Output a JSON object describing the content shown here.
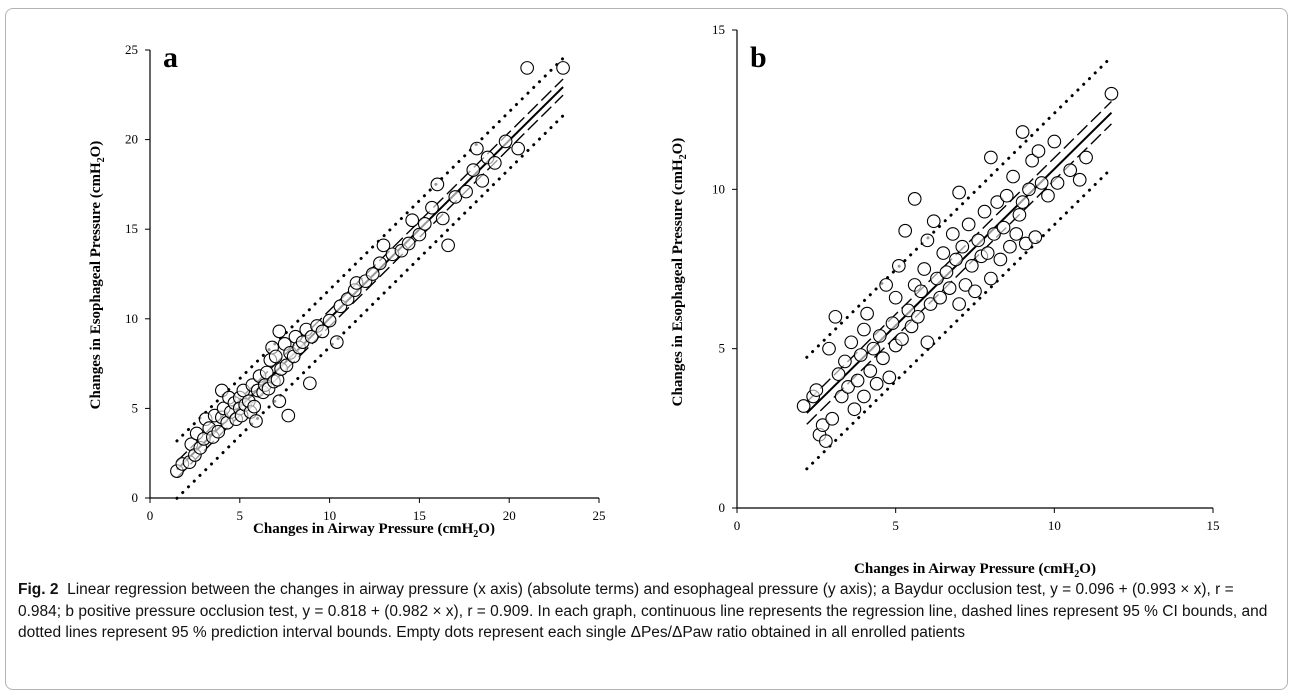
{
  "caption": {
    "label": "Fig. 2",
    "text": "Linear regression between the changes in airway pressure (x axis) (absolute terms) and esophageal pressure (y axis); a Baydur occlusion test, y = 0.096 + (0.993 × x), r = 0.984; b positive pressure occlusion test, y = 0.818 + (0.982 × x), r = 0.909. In each graph, continuous line represents the regression line, dashed lines represent 95 % CI bounds, and dotted lines represent 95 % prediction interval bounds. Empty dots represent each single ΔPes/ΔPaw ratio obtained in all enrolled patients"
  },
  "chart_data": [
    {
      "type": "scatter",
      "panel_label": "a",
      "xlabel": "Changes in Airway Pressure (cmH2O)",
      "ylabel": "Changes in Esophageal Pressure (cmH2O)",
      "xlim": [
        0,
        25
      ],
      "ylim": [
        0,
        25
      ],
      "xticks": [
        "0",
        "5",
        "10",
        "15",
        "20",
        "25"
      ],
      "yticks": [
        "0",
        "5",
        "10",
        "15",
        "20",
        "25"
      ],
      "regression": {
        "intercept": 0.096,
        "slope": 0.993,
        "x_range": [
          1.5,
          23
        ]
      },
      "ci_offset": 0.45,
      "prediction_offset": 1.6,
      "grid": false,
      "points": [
        [
          1.5,
          1.5
        ],
        [
          1.8,
          1.9
        ],
        [
          2.2,
          2.0
        ],
        [
          2.3,
          3.0
        ],
        [
          2.5,
          2.4
        ],
        [
          2.6,
          3.6
        ],
        [
          2.8,
          2.8
        ],
        [
          3.0,
          3.3
        ],
        [
          3.1,
          4.4
        ],
        [
          3.3,
          3.9
        ],
        [
          3.5,
          3.4
        ],
        [
          3.6,
          4.6
        ],
        [
          3.8,
          3.7
        ],
        [
          4.0,
          4.5
        ],
        [
          4.0,
          6.0
        ],
        [
          4.1,
          5.0
        ],
        [
          4.3,
          4.2
        ],
        [
          4.4,
          5.6
        ],
        [
          4.5,
          4.8
        ],
        [
          4.7,
          5.3
        ],
        [
          4.8,
          4.4
        ],
        [
          5.0,
          5.6
        ],
        [
          5.0,
          5.0
        ],
        [
          5.1,
          4.6
        ],
        [
          5.2,
          6.0
        ],
        [
          5.3,
          5.2
        ],
        [
          5.5,
          5.4
        ],
        [
          5.6,
          4.8
        ],
        [
          5.7,
          6.3
        ],
        [
          5.8,
          5.1
        ],
        [
          5.9,
          4.3
        ],
        [
          6.0,
          6.0
        ],
        [
          6.1,
          6.8
        ],
        [
          6.3,
          5.9
        ],
        [
          6.4,
          6.3
        ],
        [
          6.5,
          7.0
        ],
        [
          6.6,
          6.1
        ],
        [
          6.7,
          7.7
        ],
        [
          6.8,
          8.4
        ],
        [
          6.9,
          6.5
        ],
        [
          7.0,
          7.9
        ],
        [
          7.1,
          6.6
        ],
        [
          7.2,
          9.3
        ],
        [
          7.2,
          5.4
        ],
        [
          7.3,
          7.2
        ],
        [
          7.5,
          8.6
        ],
        [
          7.6,
          7.4
        ],
        [
          7.7,
          4.6
        ],
        [
          7.8,
          8.1
        ],
        [
          8.0,
          7.9
        ],
        [
          8.1,
          9.0
        ],
        [
          8.3,
          8.4
        ],
        [
          8.5,
          8.7
        ],
        [
          8.7,
          9.4
        ],
        [
          8.9,
          6.4
        ],
        [
          9.0,
          9.0
        ],
        [
          9.3,
          9.6
        ],
        [
          9.6,
          9.3
        ],
        [
          10.0,
          9.9
        ],
        [
          10.4,
          8.7
        ],
        [
          10.6,
          10.7
        ],
        [
          11.0,
          11.1
        ],
        [
          11.4,
          11.6
        ],
        [
          11.5,
          12.0
        ],
        [
          12.0,
          12.1
        ],
        [
          12.4,
          12.5
        ],
        [
          12.8,
          13.1
        ],
        [
          13.0,
          14.1
        ],
        [
          13.5,
          13.6
        ],
        [
          14.0,
          13.8
        ],
        [
          14.4,
          14.2
        ],
        [
          14.6,
          15.5
        ],
        [
          15.0,
          14.7
        ],
        [
          15.3,
          15.3
        ],
        [
          15.7,
          16.2
        ],
        [
          16.0,
          17.5
        ],
        [
          16.3,
          15.6
        ],
        [
          16.6,
          14.1
        ],
        [
          17.0,
          16.8
        ],
        [
          17.6,
          17.1
        ],
        [
          18.0,
          18.3
        ],
        [
          18.2,
          19.5
        ],
        [
          18.5,
          17.7
        ],
        [
          18.8,
          19.0
        ],
        [
          19.2,
          18.7
        ],
        [
          19.8,
          19.9
        ],
        [
          20.5,
          19.5
        ],
        [
          21.0,
          24.0
        ],
        [
          23.0,
          24.0
        ]
      ]
    },
    {
      "type": "scatter",
      "panel_label": "b",
      "xlabel": "Changes in Airway Pressure (cmH2O)",
      "ylabel": "Changes in Esophageal Pressure (cmH2O)",
      "xlim": [
        0,
        15
      ],
      "ylim": [
        0,
        15
      ],
      "xticks": [
        "0",
        "5",
        "10",
        "15"
      ],
      "yticks": [
        "0",
        "5",
        "10",
        "15"
      ],
      "regression": {
        "intercept": 0.818,
        "slope": 0.982,
        "x_range": [
          2.2,
          11.8
        ]
      },
      "ci_offset": 0.35,
      "prediction_offset": 1.75,
      "grid": false,
      "points": [
        [
          2.1,
          3.2
        ],
        [
          2.4,
          3.5
        ],
        [
          2.5,
          3.7
        ],
        [
          2.6,
          2.3
        ],
        [
          2.7,
          2.6
        ],
        [
          2.8,
          2.1
        ],
        [
          2.9,
          5.0
        ],
        [
          3.0,
          2.8
        ],
        [
          3.1,
          6.0
        ],
        [
          3.2,
          4.2
        ],
        [
          3.3,
          3.5
        ],
        [
          3.4,
          4.6
        ],
        [
          3.5,
          3.8
        ],
        [
          3.6,
          5.2
        ],
        [
          3.7,
          3.1
        ],
        [
          3.8,
          4.0
        ],
        [
          3.9,
          4.8
        ],
        [
          4.0,
          5.6
        ],
        [
          4.0,
          3.5
        ],
        [
          4.1,
          6.1
        ],
        [
          4.2,
          4.3
        ],
        [
          4.3,
          5.0
        ],
        [
          4.4,
          3.9
        ],
        [
          4.5,
          5.4
        ],
        [
          4.6,
          4.7
        ],
        [
          4.7,
          7.0
        ],
        [
          4.8,
          4.1
        ],
        [
          4.9,
          5.8
        ],
        [
          5.0,
          5.1
        ],
        [
          5.0,
          6.6
        ],
        [
          5.1,
          7.6
        ],
        [
          5.2,
          5.3
        ],
        [
          5.3,
          8.7
        ],
        [
          5.4,
          6.2
        ],
        [
          5.5,
          5.7
        ],
        [
          5.6,
          9.7
        ],
        [
          5.6,
          7.0
        ],
        [
          5.7,
          6.0
        ],
        [
          5.8,
          6.8
        ],
        [
          5.9,
          7.5
        ],
        [
          6.0,
          5.2
        ],
        [
          6.0,
          8.4
        ],
        [
          6.1,
          6.4
        ],
        [
          6.2,
          9.0
        ],
        [
          6.3,
          7.2
        ],
        [
          6.4,
          6.6
        ],
        [
          6.5,
          8.0
        ],
        [
          6.6,
          7.4
        ],
        [
          6.7,
          6.9
        ],
        [
          6.8,
          8.6
        ],
        [
          6.9,
          7.8
        ],
        [
          7.0,
          9.9
        ],
        [
          7.0,
          6.4
        ],
        [
          7.1,
          8.2
        ],
        [
          7.2,
          7.0
        ],
        [
          7.3,
          8.9
        ],
        [
          7.4,
          7.6
        ],
        [
          7.5,
          6.8
        ],
        [
          7.6,
          8.4
        ],
        [
          7.7,
          7.9
        ],
        [
          7.8,
          9.3
        ],
        [
          7.9,
          8.0
        ],
        [
          8.0,
          11.0
        ],
        [
          8.0,
          7.2
        ],
        [
          8.1,
          8.6
        ],
        [
          8.2,
          9.6
        ],
        [
          8.3,
          7.8
        ],
        [
          8.4,
          8.8
        ],
        [
          8.5,
          9.8
        ],
        [
          8.6,
          8.2
        ],
        [
          8.7,
          10.4
        ],
        [
          8.8,
          8.6
        ],
        [
          8.9,
          9.2
        ],
        [
          9.0,
          11.8
        ],
        [
          9.0,
          9.6
        ],
        [
          9.1,
          8.3
        ],
        [
          9.2,
          10.0
        ],
        [
          9.3,
          10.9
        ],
        [
          9.4,
          8.5
        ],
        [
          9.5,
          11.2
        ],
        [
          9.6,
          10.2
        ],
        [
          9.8,
          9.8
        ],
        [
          10.0,
          11.5
        ],
        [
          10.1,
          10.2
        ],
        [
          10.5,
          10.6
        ],
        [
          10.8,
          10.3
        ],
        [
          11.0,
          11.0
        ],
        [
          11.8,
          13.0
        ]
      ]
    }
  ]
}
